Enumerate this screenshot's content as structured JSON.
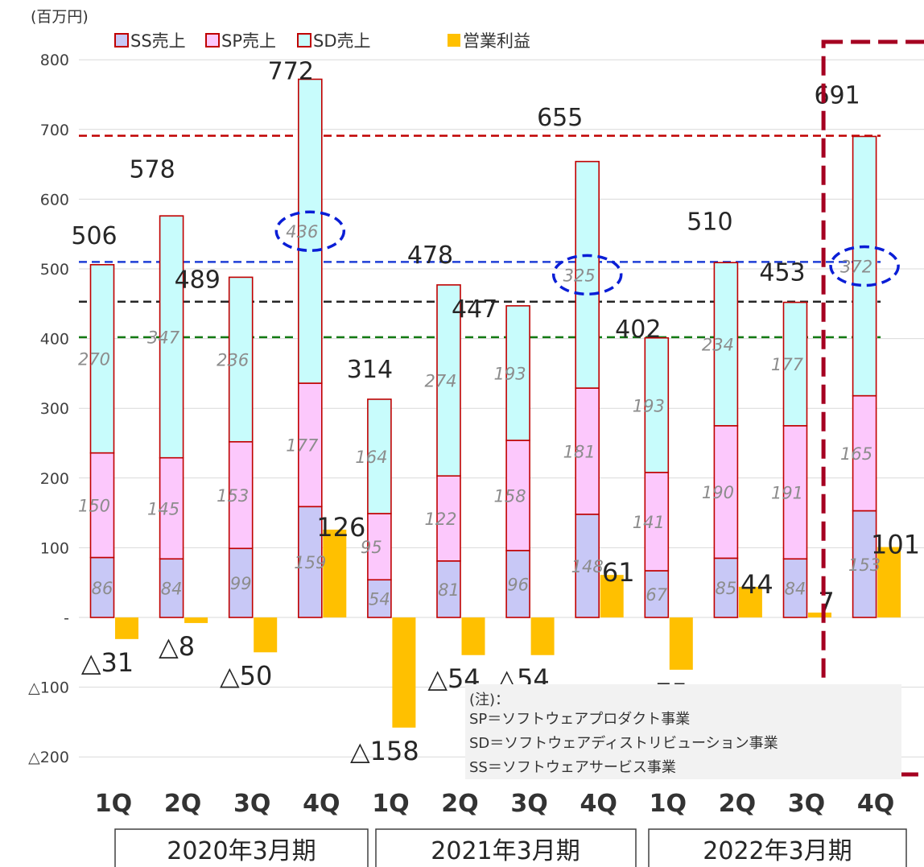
{
  "chart_data": {
    "type": "bar",
    "unit_label": "(百万円)",
    "ylim": [
      -200,
      800
    ],
    "y_ticks": [
      800,
      700,
      600,
      500,
      400,
      300,
      200,
      100,
      0,
      -100,
      -200
    ],
    "y_tick_labels": [
      "800",
      "700",
      "600",
      "500",
      "400",
      "300",
      "200",
      "100",
      "-",
      "△100",
      "△200"
    ],
    "categories": [
      "1Q",
      "2Q",
      "3Q",
      "4Q",
      "1Q",
      "2Q",
      "3Q",
      "4Q",
      "1Q",
      "2Q",
      "3Q",
      "4Q"
    ],
    "fiscal_years": [
      "2020年3月期",
      "2021年3月期",
      "2022年3月期"
    ],
    "series": [
      {
        "name": "SS売上",
        "color": "#c8c8f6",
        "values": [
          86,
          84,
          99,
          159,
          54,
          81,
          96,
          148,
          67,
          85,
          84,
          153
        ]
      },
      {
        "name": "SP売上",
        "color": "#fcc8fc",
        "values": [
          150,
          145,
          153,
          177,
          95,
          122,
          158,
          181,
          141,
          190,
          191,
          165
        ]
      },
      {
        "name": "SD売上",
        "color": "#c8fcfc",
        "values": [
          270,
          347,
          236,
          436,
          164,
          274,
          193,
          325,
          193,
          234,
          177,
          372
        ]
      },
      {
        "name": "営業利益",
        "color": "#ffc000",
        "values": [
          -31,
          -8,
          -50,
          126,
          -158,
          -54,
          -54,
          61,
          -75,
          44,
          7,
          101
        ]
      }
    ],
    "totals": [
      506,
      578,
      489,
      772,
      314,
      478,
      447,
      655,
      402,
      510,
      453,
      691
    ],
    "segment_labels": {
      "ss": [
        "86",
        "84",
        "99",
        "159",
        "54",
        "81",
        "96",
        "148",
        "67",
        "85",
        "84",
        "153"
      ],
      "sp": [
        "150",
        "145",
        "153",
        "177",
        "95",
        "122",
        "158",
        "181",
        "141",
        "190",
        "191",
        "165"
      ],
      "sd": [
        "270",
        "347",
        "236",
        "436",
        "164",
        "274",
        "193",
        "325",
        "193",
        "234",
        "177",
        "372"
      ]
    },
    "total_labels": [
      "506",
      "578",
      "489",
      "772",
      "314",
      "478",
      "447",
      "655",
      "402",
      "510",
      "453",
      "691"
    ],
    "profit_labels": [
      "△31",
      "△8",
      "△50",
      "126",
      "△158",
      "△54",
      "△54",
      "61",
      "△75",
      "44",
      "7",
      "101"
    ],
    "reference_lines": [
      {
        "value": 691,
        "color": "#c00000"
      },
      {
        "value": 510,
        "color": "#1f3fd6"
      },
      {
        "value": 453,
        "color": "#262626"
      },
      {
        "value": 402,
        "color": "#137a13"
      }
    ],
    "highlighted_category_index": 11,
    "highlight_color": "#a50021",
    "circled_segment_indices": [
      3,
      7,
      11
    ],
    "circle_color": "#0a1ed6",
    "bar_outline_color": "#c00000",
    "grid": true,
    "legend_position": "top-left"
  },
  "note": {
    "title": "(注)：",
    "lines": [
      "SP＝ソフトウェアプロダクト事業",
      "SD＝ソフトウェアディストリビューション事業",
      "SS＝ソフトウェアサービス事業"
    ]
  }
}
